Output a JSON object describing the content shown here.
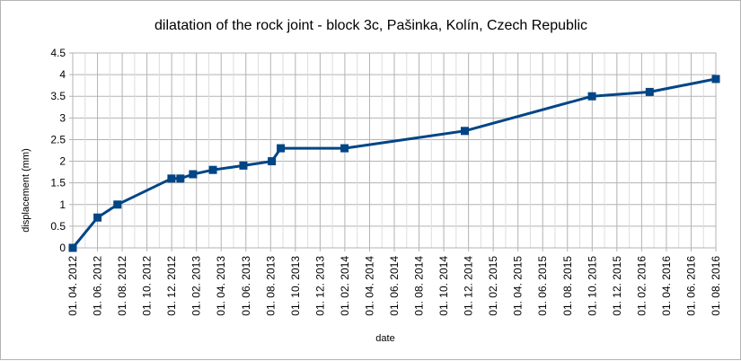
{
  "chart_data": {
    "type": "line",
    "title": "dilatation of the rock joint - block 3c, Pašinka, Kolín, Czech Republic",
    "xlabel": "date",
    "ylabel": "displacement (mm)",
    "ylim": [
      0,
      4.5
    ],
    "yticks": [
      "0",
      "0.5",
      "1",
      "1.5",
      "2",
      "2.5",
      "3",
      "3.5",
      "4",
      "4.5"
    ],
    "xlim": [
      "2012-04-01",
      "2016-08-01"
    ],
    "xticks": [
      "01. 04. 2012",
      "01. 06. 2012",
      "01. 08. 2012",
      "01. 10. 2012",
      "01. 12. 2012",
      "01. 02. 2013",
      "01. 04. 2013",
      "01. 06. 2013",
      "01. 08. 2013",
      "01. 10. 2013",
      "01. 12. 2013",
      "01. 02. 2014",
      "01. 04. 2014",
      "01. 06. 2014",
      "01. 08. 2014",
      "01. 10. 2014",
      "01. 12. 2014",
      "01. 02. 2015",
      "01. 04. 2015",
      "01. 06. 2015",
      "01. 08. 2015",
      "01. 10. 2015",
      "01. 12. 2015",
      "01. 02. 2016",
      "01. 04. 2016",
      "01. 06. 2016",
      "01. 08. 2016"
    ],
    "grid": true,
    "line_color": "#004586",
    "series": [
      {
        "points": [
          {
            "x": "2012-04-01",
            "y": 0
          },
          {
            "x": "2012-06-01",
            "y": 0.7
          },
          {
            "x": "2012-07-20",
            "y": 1.0
          },
          {
            "x": "2012-11-30",
            "y": 1.6
          },
          {
            "x": "2012-12-22",
            "y": 1.6
          },
          {
            "x": "2013-01-22",
            "y": 1.7
          },
          {
            "x": "2013-03-12",
            "y": 1.8
          },
          {
            "x": "2013-05-26",
            "y": 1.9
          },
          {
            "x": "2013-08-04",
            "y": 2.0
          },
          {
            "x": "2013-08-26",
            "y": 2.3
          },
          {
            "x": "2014-01-30",
            "y": 2.3
          },
          {
            "x": "2014-11-22",
            "y": 2.7
          },
          {
            "x": "2015-10-01",
            "y": 3.5
          },
          {
            "x": "2016-02-20",
            "y": 3.6
          },
          {
            "x": "2016-08-01",
            "y": 3.9
          }
        ]
      }
    ]
  }
}
